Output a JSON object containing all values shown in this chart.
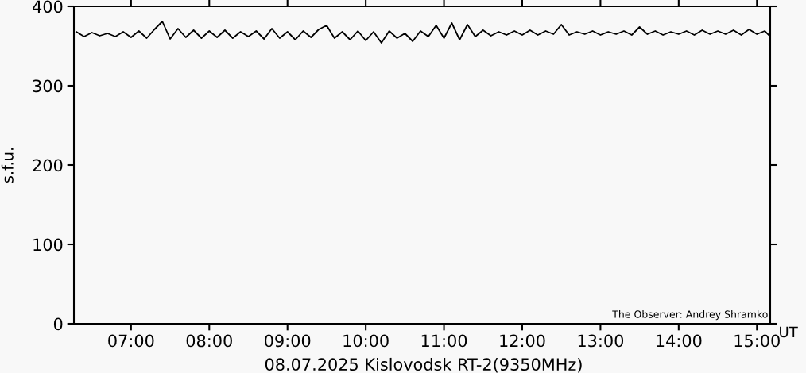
{
  "chart_data": {
    "type": "line",
    "title": "08.07.2025 Kislovodsk RT-2(9350MHz)",
    "xlabel": "UT",
    "ylabel": "s.f.u.",
    "annotations": [
      "The Observer: Andrey Shramko"
    ],
    "x": [
      6.3,
      6.4,
      6.5,
      6.6,
      6.7,
      6.8,
      6.9,
      7.0,
      7.1,
      7.2,
      7.3,
      7.4,
      7.5,
      7.6,
      7.7,
      7.8,
      7.9,
      8.0,
      8.1,
      8.2,
      8.3,
      8.4,
      8.5,
      8.6,
      8.7,
      8.8,
      8.9,
      9.0,
      9.1,
      9.2,
      9.3,
      9.4,
      9.5,
      9.6,
      9.7,
      9.8,
      9.9,
      10.0,
      10.1,
      10.2,
      10.3,
      10.4,
      10.5,
      10.6,
      10.7,
      10.8,
      10.9,
      11.0,
      11.1,
      11.2,
      11.3,
      11.4,
      11.5,
      11.6,
      11.7,
      11.8,
      11.9,
      12.0,
      12.1,
      12.2,
      12.3,
      12.4,
      12.5,
      12.6,
      12.7,
      12.8,
      12.9,
      13.0,
      13.1,
      13.2,
      13.3,
      13.4,
      13.5,
      13.6,
      13.7,
      13.8,
      13.9,
      14.0,
      14.1,
      14.2,
      14.3,
      14.4,
      14.5,
      14.6,
      14.7,
      14.8,
      14.9,
      15.0,
      15.1,
      15.15
    ],
    "series": [
      {
        "color": "#000000",
        "values": [
          368,
          362,
          367,
          363,
          366,
          362,
          368,
          361,
          369,
          360,
          371,
          381,
          359,
          372,
          361,
          370,
          360,
          369,
          361,
          370,
          360,
          368,
          362,
          369,
          359,
          372,
          360,
          368,
          358,
          369,
          361,
          371,
          376,
          360,
          368,
          358,
          369,
          357,
          368,
          354,
          369,
          360,
          366,
          356,
          369,
          362,
          376,
          360,
          379,
          358,
          377,
          362,
          370,
          363,
          368,
          364,
          369,
          364,
          370,
          364,
          369,
          365,
          377,
          364,
          368,
          365,
          369,
          364,
          368,
          365,
          369,
          364,
          374,
          365,
          369,
          364,
          368,
          365,
          369,
          364,
          370,
          365,
          369,
          365,
          370,
          364,
          371,
          365,
          369,
          364
        ]
      }
    ],
    "xlim": [
      6.27,
      15.17
    ],
    "xticks": [
      {
        "value": 7,
        "label": "07:00"
      },
      {
        "value": 8,
        "label": "08:00"
      },
      {
        "value": 9,
        "label": "09:00"
      },
      {
        "value": 10,
        "label": "10:00"
      },
      {
        "value": 11,
        "label": "11:00"
      },
      {
        "value": 12,
        "label": "12:00"
      },
      {
        "value": 13,
        "label": "13:00"
      },
      {
        "value": 14,
        "label": "14:00"
      },
      {
        "value": 15,
        "label": "15:00"
      }
    ],
    "ylim": [
      0,
      400
    ],
    "yticks": [
      0,
      100,
      200,
      300,
      400
    ],
    "grid": false,
    "legend": false,
    "marker": "none",
    "line_style": "solid"
  }
}
